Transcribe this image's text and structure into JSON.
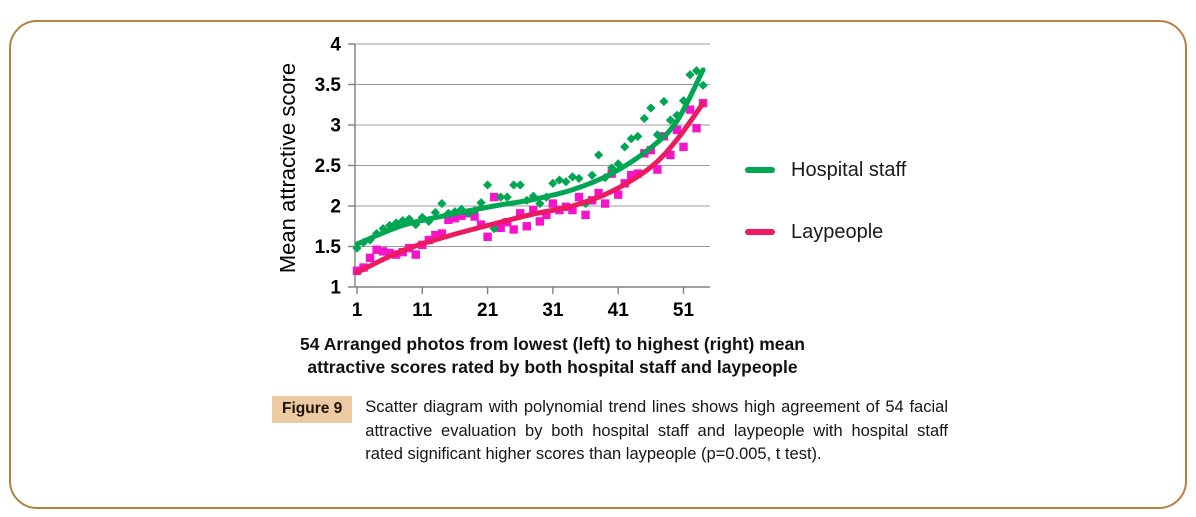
{
  "frame": {
    "border_color": "#b5813f"
  },
  "chart_data": {
    "type": "scatter",
    "title": "",
    "ylabel": "Mean attractive score",
    "xlabel": "54 Arranged photos from lowest (left) to highest (right) mean attractive scores rated by both hospital staff and laypeople",
    "xlabel_lines": [
      "54 Arranged photos from lowest (left) to highest (right) mean",
      "attractive scores rated by both hospital staff and laypeople"
    ],
    "xlim": [
      0,
      55
    ],
    "ylim": [
      1,
      4
    ],
    "x_ticks": [
      1,
      11,
      21,
      31,
      41,
      51
    ],
    "y_ticks": [
      1,
      1.5,
      2,
      2.5,
      3,
      3.5,
      4
    ],
    "grid": true,
    "legend_position": "right-outside",
    "x_description": "photo rank 1 to 54",
    "x": [
      1,
      2,
      3,
      4,
      5,
      6,
      7,
      8,
      9,
      10,
      11,
      12,
      13,
      14,
      15,
      16,
      17,
      18,
      19,
      20,
      21,
      22,
      23,
      24,
      25,
      26,
      27,
      28,
      29,
      30,
      31,
      32,
      33,
      34,
      35,
      36,
      37,
      38,
      39,
      40,
      41,
      42,
      43,
      44,
      45,
      46,
      47,
      48,
      49,
      50,
      51,
      52,
      53,
      54
    ],
    "series": [
      {
        "name": "Hospital staff",
        "marker": "diamond",
        "marker_color": "#00a651",
        "line_color": "#00a651",
        "trend": "polynomial",
        "values": [
          1.48,
          1.55,
          1.58,
          1.66,
          1.72,
          1.76,
          1.79,
          1.82,
          1.84,
          1.77,
          1.86,
          1.81,
          1.92,
          2.03,
          1.91,
          1.93,
          1.96,
          1.91,
          1.94,
          2.04,
          2.26,
          1.72,
          2.11,
          2.11,
          2.26,
          2.26,
          2.07,
          2.12,
          2.03,
          2.11,
          2.28,
          2.32,
          2.3,
          2.36,
          2.34,
          2.03,
          2.38,
          2.63,
          2.35,
          2.47,
          2.52,
          2.73,
          2.83,
          2.86,
          3.08,
          3.21,
          2.88,
          3.29,
          3.06,
          3.12,
          3.3,
          3.62,
          3.67,
          3.49
        ]
      },
      {
        "name": "Laypeople",
        "marker": "square",
        "marker_color": "#f712cc",
        "line_color": "#eb1a61",
        "trend": "polynomial",
        "values": [
          1.2,
          1.24,
          1.36,
          1.46,
          1.44,
          1.42,
          1.4,
          1.43,
          1.48,
          1.4,
          1.52,
          1.58,
          1.64,
          1.66,
          1.83,
          1.85,
          1.88,
          1.91,
          1.87,
          1.77,
          1.62,
          2.11,
          1.73,
          1.8,
          1.71,
          1.91,
          1.75,
          1.95,
          1.81,
          1.89,
          2.03,
          1.95,
          1.99,
          1.95,
          2.11,
          1.89,
          2.07,
          2.16,
          2.03,
          2.4,
          2.14,
          2.28,
          2.38,
          2.4,
          2.65,
          2.69,
          2.45,
          2.86,
          2.63,
          2.94,
          2.73,
          3.19,
          2.96,
          3.27
        ]
      }
    ],
    "trend_anchors": {
      "hospital_staff": [
        [
          1,
          1.53
        ],
        [
          8,
          1.76
        ],
        [
          15,
          1.89
        ],
        [
          22,
          2.0
        ],
        [
          28,
          2.08
        ],
        [
          34,
          2.2
        ],
        [
          40,
          2.4
        ],
        [
          46,
          2.72
        ],
        [
          50,
          3.05
        ],
        [
          54,
          3.68
        ]
      ],
      "laypeople": [
        [
          1,
          1.18
        ],
        [
          8,
          1.45
        ],
        [
          15,
          1.63
        ],
        [
          22,
          1.78
        ],
        [
          28,
          1.9
        ],
        [
          34,
          2.0
        ],
        [
          40,
          2.18
        ],
        [
          46,
          2.48
        ],
        [
          50,
          2.82
        ],
        [
          54,
          3.27
        ]
      ]
    },
    "axis_color": "#808080",
    "grid_color": "#9c9c9c",
    "tick_label_color": "#000000"
  },
  "caption": {
    "badge": "Figure 9",
    "badge_bg": "#edcaa2",
    "text": "Scatter diagram with polynomial trend lines shows high agreement of 54 facial attractive evaluation by both hospital staff and laypeople with hospital staff rated significant higher scores than laypeople (p=0.005, t test)."
  }
}
